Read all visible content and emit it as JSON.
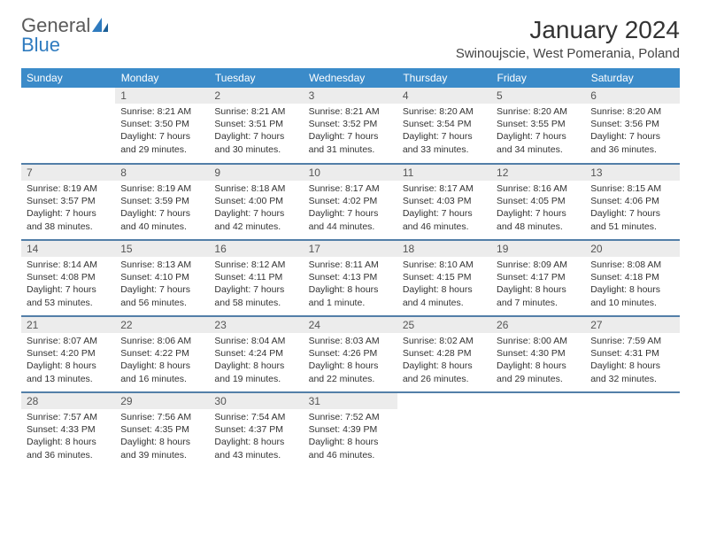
{
  "logo": {
    "text1": "General",
    "text2": "Blue"
  },
  "title": "January 2024",
  "location": "Swinoujscie, West Pomerania, Poland",
  "colors": {
    "header_bg": "#3b8bc9",
    "row_divider": "#537fa8",
    "daynum_bg": "#ececec",
    "logo_blue": "#2f7bbf"
  },
  "weekdays": [
    "Sunday",
    "Monday",
    "Tuesday",
    "Wednesday",
    "Thursday",
    "Friday",
    "Saturday"
  ],
  "weeks": [
    [
      {
        "n": "",
        "sr": "",
        "ss": "",
        "dl": ""
      },
      {
        "n": "1",
        "sr": "Sunrise: 8:21 AM",
        "ss": "Sunset: 3:50 PM",
        "dl": "Daylight: 7 hours and 29 minutes."
      },
      {
        "n": "2",
        "sr": "Sunrise: 8:21 AM",
        "ss": "Sunset: 3:51 PM",
        "dl": "Daylight: 7 hours and 30 minutes."
      },
      {
        "n": "3",
        "sr": "Sunrise: 8:21 AM",
        "ss": "Sunset: 3:52 PM",
        "dl": "Daylight: 7 hours and 31 minutes."
      },
      {
        "n": "4",
        "sr": "Sunrise: 8:20 AM",
        "ss": "Sunset: 3:54 PM",
        "dl": "Daylight: 7 hours and 33 minutes."
      },
      {
        "n": "5",
        "sr": "Sunrise: 8:20 AM",
        "ss": "Sunset: 3:55 PM",
        "dl": "Daylight: 7 hours and 34 minutes."
      },
      {
        "n": "6",
        "sr": "Sunrise: 8:20 AM",
        "ss": "Sunset: 3:56 PM",
        "dl": "Daylight: 7 hours and 36 minutes."
      }
    ],
    [
      {
        "n": "7",
        "sr": "Sunrise: 8:19 AM",
        "ss": "Sunset: 3:57 PM",
        "dl": "Daylight: 7 hours and 38 minutes."
      },
      {
        "n": "8",
        "sr": "Sunrise: 8:19 AM",
        "ss": "Sunset: 3:59 PM",
        "dl": "Daylight: 7 hours and 40 minutes."
      },
      {
        "n": "9",
        "sr": "Sunrise: 8:18 AM",
        "ss": "Sunset: 4:00 PM",
        "dl": "Daylight: 7 hours and 42 minutes."
      },
      {
        "n": "10",
        "sr": "Sunrise: 8:17 AM",
        "ss": "Sunset: 4:02 PM",
        "dl": "Daylight: 7 hours and 44 minutes."
      },
      {
        "n": "11",
        "sr": "Sunrise: 8:17 AM",
        "ss": "Sunset: 4:03 PM",
        "dl": "Daylight: 7 hours and 46 minutes."
      },
      {
        "n": "12",
        "sr": "Sunrise: 8:16 AM",
        "ss": "Sunset: 4:05 PM",
        "dl": "Daylight: 7 hours and 48 minutes."
      },
      {
        "n": "13",
        "sr": "Sunrise: 8:15 AM",
        "ss": "Sunset: 4:06 PM",
        "dl": "Daylight: 7 hours and 51 minutes."
      }
    ],
    [
      {
        "n": "14",
        "sr": "Sunrise: 8:14 AM",
        "ss": "Sunset: 4:08 PM",
        "dl": "Daylight: 7 hours and 53 minutes."
      },
      {
        "n": "15",
        "sr": "Sunrise: 8:13 AM",
        "ss": "Sunset: 4:10 PM",
        "dl": "Daylight: 7 hours and 56 minutes."
      },
      {
        "n": "16",
        "sr": "Sunrise: 8:12 AM",
        "ss": "Sunset: 4:11 PM",
        "dl": "Daylight: 7 hours and 58 minutes."
      },
      {
        "n": "17",
        "sr": "Sunrise: 8:11 AM",
        "ss": "Sunset: 4:13 PM",
        "dl": "Daylight: 8 hours and 1 minute."
      },
      {
        "n": "18",
        "sr": "Sunrise: 8:10 AM",
        "ss": "Sunset: 4:15 PM",
        "dl": "Daylight: 8 hours and 4 minutes."
      },
      {
        "n": "19",
        "sr": "Sunrise: 8:09 AM",
        "ss": "Sunset: 4:17 PM",
        "dl": "Daylight: 8 hours and 7 minutes."
      },
      {
        "n": "20",
        "sr": "Sunrise: 8:08 AM",
        "ss": "Sunset: 4:18 PM",
        "dl": "Daylight: 8 hours and 10 minutes."
      }
    ],
    [
      {
        "n": "21",
        "sr": "Sunrise: 8:07 AM",
        "ss": "Sunset: 4:20 PM",
        "dl": "Daylight: 8 hours and 13 minutes."
      },
      {
        "n": "22",
        "sr": "Sunrise: 8:06 AM",
        "ss": "Sunset: 4:22 PM",
        "dl": "Daylight: 8 hours and 16 minutes."
      },
      {
        "n": "23",
        "sr": "Sunrise: 8:04 AM",
        "ss": "Sunset: 4:24 PM",
        "dl": "Daylight: 8 hours and 19 minutes."
      },
      {
        "n": "24",
        "sr": "Sunrise: 8:03 AM",
        "ss": "Sunset: 4:26 PM",
        "dl": "Daylight: 8 hours and 22 minutes."
      },
      {
        "n": "25",
        "sr": "Sunrise: 8:02 AM",
        "ss": "Sunset: 4:28 PM",
        "dl": "Daylight: 8 hours and 26 minutes."
      },
      {
        "n": "26",
        "sr": "Sunrise: 8:00 AM",
        "ss": "Sunset: 4:30 PM",
        "dl": "Daylight: 8 hours and 29 minutes."
      },
      {
        "n": "27",
        "sr": "Sunrise: 7:59 AM",
        "ss": "Sunset: 4:31 PM",
        "dl": "Daylight: 8 hours and 32 minutes."
      }
    ],
    [
      {
        "n": "28",
        "sr": "Sunrise: 7:57 AM",
        "ss": "Sunset: 4:33 PM",
        "dl": "Daylight: 8 hours and 36 minutes."
      },
      {
        "n": "29",
        "sr": "Sunrise: 7:56 AM",
        "ss": "Sunset: 4:35 PM",
        "dl": "Daylight: 8 hours and 39 minutes."
      },
      {
        "n": "30",
        "sr": "Sunrise: 7:54 AM",
        "ss": "Sunset: 4:37 PM",
        "dl": "Daylight: 8 hours and 43 minutes."
      },
      {
        "n": "31",
        "sr": "Sunrise: 7:52 AM",
        "ss": "Sunset: 4:39 PM",
        "dl": "Daylight: 8 hours and 46 minutes."
      },
      {
        "n": "",
        "sr": "",
        "ss": "",
        "dl": ""
      },
      {
        "n": "",
        "sr": "",
        "ss": "",
        "dl": ""
      },
      {
        "n": "",
        "sr": "",
        "ss": "",
        "dl": ""
      }
    ]
  ]
}
